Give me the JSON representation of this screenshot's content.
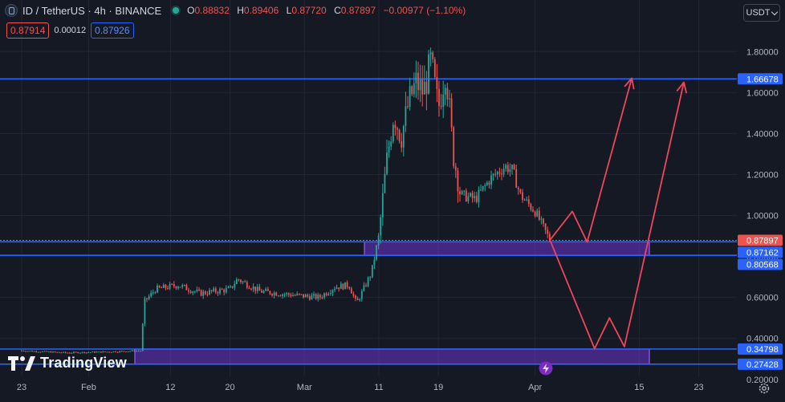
{
  "header": {
    "symbol": "ID / TetherUS · 4h · BINANCE",
    "o_label": "O",
    "o_value": "0.88832",
    "h_label": "H",
    "h_value": "0.89406",
    "l_label": "L",
    "l_value": "0.87720",
    "c_label": "C",
    "c_value": "0.87897",
    "change": "−0.00977 (−1.10%)"
  },
  "quote": {
    "sell": "0.87914",
    "spread": "0.00012",
    "buy": "0.87926"
  },
  "currency_button": "USDT",
  "brand": "TradingView",
  "colors": {
    "background": "#151924",
    "grid": "#232632",
    "up": "#26a69a",
    "down": "#ef5350",
    "level_line": "#2962ff",
    "zone": "#7e3af2",
    "projection": "#f0455a"
  },
  "chart_data": {
    "type": "candlestick",
    "instrument": "ID / TetherUS",
    "timeframe": "4h",
    "exchange": "BINANCE",
    "y_axis": {
      "ticks": [
        "1.80000",
        "1.60000",
        "1.40000",
        "1.20000",
        "1.00000",
        "0.80000",
        "0.60000",
        "0.40000",
        "0.20000"
      ],
      "ylim": [
        0.16,
        1.95
      ]
    },
    "x_axis": {
      "ticks": [
        "23",
        "Feb",
        "12",
        "20",
        "Mar",
        "11",
        "19",
        "Apr",
        "15",
        "23"
      ]
    },
    "grid": true,
    "price_series": [
      {
        "t": "Jan 23",
        "p": 0.34
      },
      {
        "t": "Jan 29",
        "p": 0.33
      },
      {
        "t": "Feb 4",
        "p": 0.335
      },
      {
        "t": "Feb 8",
        "p": 0.34
      },
      {
        "t": "Feb 8.5",
        "p": 0.58
      },
      {
        "t": "Feb 10",
        "p": 0.64
      },
      {
        "t": "Feb 13",
        "p": 0.66
      },
      {
        "t": "Feb 16",
        "p": 0.62
      },
      {
        "t": "Feb 20",
        "p": 0.64
      },
      {
        "t": "Feb 21",
        "p": 0.69
      },
      {
        "t": "Feb 24",
        "p": 0.63
      },
      {
        "t": "Feb 29",
        "p": 0.61
      },
      {
        "t": "Mar 3",
        "p": 0.6
      },
      {
        "t": "Mar 5",
        "p": 0.65
      },
      {
        "t": "Mar 7",
        "p": 0.66
      },
      {
        "t": "Mar 8",
        "p": 0.57
      },
      {
        "t": "Mar 10",
        "p": 0.72
      },
      {
        "t": "Mar 11",
        "p": 0.9
      },
      {
        "t": "Mar 12",
        "p": 1.25
      },
      {
        "t": "Mar 13",
        "p": 1.5
      },
      {
        "t": "Mar 14",
        "p": 1.38
      },
      {
        "t": "Mar 15",
        "p": 1.55
      },
      {
        "t": "Mar 16",
        "p": 1.65
      },
      {
        "t": "Mar 17",
        "p": 1.6
      },
      {
        "t": "Mar 18",
        "p": 1.75
      },
      {
        "t": "Mar 19",
        "p": 1.52
      },
      {
        "t": "Mar 20",
        "p": 1.72
      },
      {
        "t": "Mar 21",
        "p": 1.3
      },
      {
        "t": "Mar 22",
        "p": 1.1
      },
      {
        "t": "Mar 24",
        "p": 1.08
      },
      {
        "t": "Mar 26",
        "p": 1.18
      },
      {
        "t": "Mar 28",
        "p": 1.24
      },
      {
        "t": "Mar 29",
        "p": 1.22
      },
      {
        "t": "Mar 30",
        "p": 1.1
      },
      {
        "t": "Apr 1",
        "p": 1.02
      },
      {
        "t": "Apr 2",
        "p": 0.95
      },
      {
        "t": "Apr 3",
        "p": 0.879
      }
    ],
    "price_labels": [
      {
        "label": "1.66678",
        "value": 1.66678,
        "kind": "level"
      },
      {
        "label": "0.87897",
        "value": 0.87897,
        "kind": "last"
      },
      {
        "label": "0.87162",
        "value": 0.87162,
        "kind": "level"
      },
      {
        "label": "0.80568",
        "value": 0.80568,
        "kind": "level"
      },
      {
        "label": "0.34798",
        "value": 0.34798,
        "kind": "level"
      },
      {
        "label": "0.27428",
        "value": 0.27428,
        "kind": "level"
      }
    ],
    "zones": [
      {
        "from": 0.80568,
        "to": 0.87162
      },
      {
        "from": 0.27428,
        "to": 0.34798
      }
    ],
    "projections": [
      [
        {
          "t": "Apr 3",
          "p": 0.88
        },
        {
          "t": "Apr 6",
          "p": 1.02
        },
        {
          "t": "Apr 8",
          "p": 0.87
        },
        {
          "t": "Apr 14",
          "p": 1.67
        }
      ],
      [
        {
          "t": "Apr 3",
          "p": 0.88
        },
        {
          "t": "Apr 9",
          "p": 0.35
        },
        {
          "t": "Apr 11",
          "p": 0.5
        },
        {
          "t": "Apr 13",
          "p": 0.36
        },
        {
          "t": "Apr 21",
          "p": 1.65
        }
      ]
    ]
  }
}
